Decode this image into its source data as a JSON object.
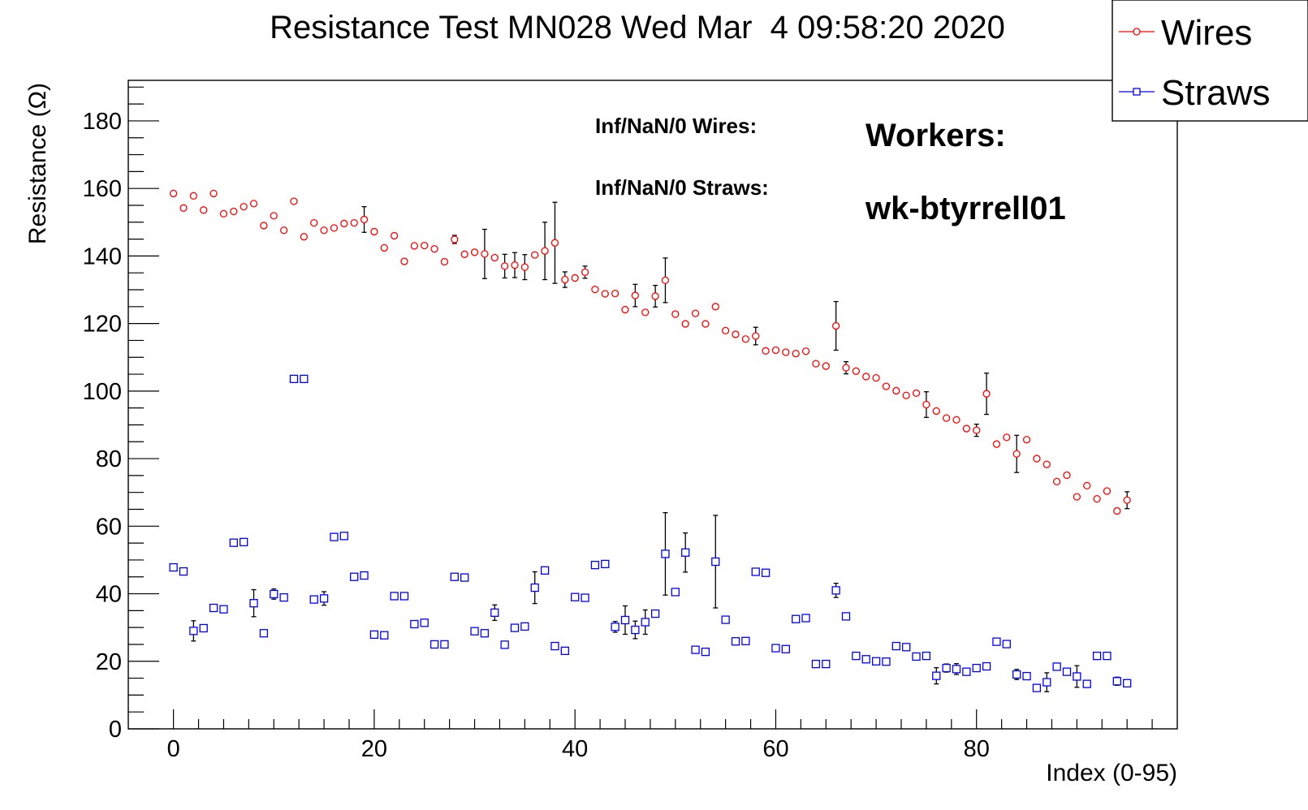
{
  "chart_data": {
    "type": "scatter",
    "title": "Resistance Test MN028 Wed Mar  4 09:58:20 2020",
    "xlabel": "Index (0-95)",
    "ylabel": "Resistance (Ω)",
    "xlim": [
      -4.5,
      100
    ],
    "ylim": [
      0,
      192
    ],
    "x_ticks": [
      0,
      20,
      40,
      60,
      80
    ],
    "x_tick_labels": [
      "0",
      "20",
      "40",
      "60",
      "80"
    ],
    "y_ticks": [
      0,
      20,
      40,
      60,
      80,
      100,
      120,
      140,
      160,
      180
    ],
    "y_tick_labels": [
      "0",
      "20",
      "40",
      "60",
      "80",
      "100",
      "120",
      "140",
      "160",
      "180"
    ],
    "grid": false,
    "legend_position": "top-right",
    "legend": [
      "Wires",
      "Straws"
    ],
    "annotations": {
      "inf_wires": "Inf/NaN/0 Wires:",
      "inf_straws": "Inf/NaN/0 Straws:",
      "workers_label": "Workers:",
      "workers_value": "wk-btyrrell01"
    },
    "series": [
      {
        "name": "Wires",
        "color": "#ff0000",
        "marker": "circle",
        "x": [
          0,
          1,
          2,
          3,
          4,
          5,
          6,
          7,
          8,
          9,
          10,
          11,
          12,
          13,
          14,
          15,
          16,
          17,
          18,
          19,
          20,
          21,
          22,
          23,
          24,
          25,
          26,
          27,
          28,
          29,
          30,
          31,
          32,
          33,
          34,
          35,
          36,
          37,
          38,
          39,
          40,
          41,
          42,
          43,
          44,
          45,
          46,
          47,
          48,
          49,
          50,
          51,
          52,
          53,
          54,
          55,
          56,
          57,
          58,
          59,
          60,
          61,
          62,
          63,
          64,
          65,
          66,
          67,
          68,
          69,
          70,
          71,
          72,
          73,
          74,
          75,
          76,
          77,
          78,
          79,
          80,
          81,
          82,
          83,
          84,
          85,
          86,
          87,
          88,
          89,
          90,
          91,
          92,
          93,
          94,
          95
        ],
        "y": [
          158.5,
          154.2,
          157.8,
          153.6,
          158.5,
          152.5,
          153.2,
          154.6,
          155.5,
          149,
          151.9,
          147.6,
          156.2,
          145.7,
          149.8,
          147.6,
          148.3,
          149.6,
          149.8,
          150.8,
          147.2,
          142.4,
          146,
          138.4,
          143,
          143.1,
          142.1,
          138.3,
          144.9,
          140.5,
          141.1,
          140.6,
          139.5,
          137,
          137.3,
          136.7,
          140.3,
          141.5,
          143.9,
          133,
          133.5,
          135.2,
          130.1,
          128.8,
          128.9,
          124.1,
          128.3,
          123.3,
          128.1,
          132.8,
          122.8,
          119.9,
          123,
          119.9,
          125,
          117.9,
          116.8,
          115.4,
          116.3,
          111.9,
          112.1,
          111.5,
          111.1,
          111.8,
          108.1,
          107.4,
          119.3,
          106.9,
          105.9,
          104.3,
          103.9,
          101.4,
          100.1,
          98.7,
          99.4,
          96,
          94.1,
          92,
          91.5,
          88.9,
          88.4,
          99.2,
          84.3,
          86.3,
          81.4,
          85.6,
          80,
          78.3,
          73.2,
          75.1,
          68.7,
          72,
          68.1,
          70.4,
          64.5,
          67.7
        ],
        "error": [
          0,
          0,
          0,
          0,
          0,
          0,
          0,
          0,
          0,
          0,
          0,
          0,
          0,
          0,
          0,
          0,
          0,
          0,
          0,
          3.8,
          0,
          0,
          0,
          0,
          0,
          0,
          0,
          0,
          1.2,
          0,
          0,
          7.3,
          0,
          3.5,
          3.7,
          3.7,
          0,
          8.5,
          12,
          2.3,
          0,
          1.8,
          0,
          0,
          0,
          0,
          3.3,
          0,
          3.2,
          6.6,
          0,
          0,
          0,
          0,
          0,
          0,
          0,
          0,
          2.6,
          0,
          0,
          0,
          0,
          0,
          0,
          0,
          7.2,
          1.8,
          0,
          0,
          0,
          0,
          0,
          0,
          0,
          3.8,
          0,
          0,
          0,
          0,
          1.8,
          6.1,
          0,
          0,
          5.5,
          0,
          0,
          0,
          0,
          0,
          0,
          0,
          0,
          0,
          0,
          2.5
        ]
      },
      {
        "name": "Straws",
        "color": "#0000ff",
        "marker": "square",
        "x": [
          0,
          1,
          2,
          3,
          4,
          5,
          6,
          7,
          8,
          9,
          10,
          11,
          12,
          13,
          14,
          15,
          16,
          17,
          18,
          19,
          20,
          21,
          22,
          23,
          24,
          25,
          26,
          27,
          28,
          29,
          30,
          31,
          32,
          33,
          34,
          35,
          36,
          37,
          38,
          39,
          40,
          41,
          42,
          43,
          44,
          45,
          46,
          47,
          48,
          49,
          50,
          51,
          52,
          53,
          54,
          55,
          56,
          57,
          58,
          59,
          60,
          61,
          62,
          63,
          64,
          65,
          66,
          67,
          68,
          69,
          70,
          71,
          72,
          73,
          74,
          75,
          76,
          77,
          78,
          79,
          80,
          81,
          82,
          83,
          84,
          85,
          86,
          87,
          88,
          89,
          90,
          91,
          92,
          93,
          94,
          95
        ],
        "y": [
          47.8,
          46.6,
          29,
          29.8,
          35.8,
          35.4,
          55.1,
          55.3,
          37.2,
          28.3,
          39.9,
          38.9,
          103.6,
          103.6,
          38.3,
          38.6,
          56.8,
          57.1,
          45,
          45.4,
          27.9,
          27.7,
          39.3,
          39.3,
          31,
          31.4,
          25,
          25,
          45,
          44.8,
          28.9,
          28.3,
          34.4,
          24.9,
          29.9,
          30.3,
          41.8,
          46.9,
          24.5,
          23.1,
          39,
          38.8,
          48.5,
          48.8,
          30.2,
          32.2,
          29.3,
          31.6,
          34.1,
          51.8,
          40.5,
          52.2,
          23.4,
          22.8,
          49.5,
          32.3,
          25.9,
          26,
          46.5,
          46.2,
          23.9,
          23.6,
          32.5,
          32.8,
          19.2,
          19.2,
          41,
          33.3,
          21.6,
          20.6,
          20,
          19.9,
          24.5,
          24.2,
          21.4,
          21.6,
          15.7,
          18,
          17.7,
          16.9,
          18,
          18.5,
          25.8,
          25.1,
          16.1,
          15.6,
          12.1,
          13.8,
          18.4,
          16.9,
          15.5,
          13.3,
          21.6,
          21.6,
          14.1,
          13.5
        ],
        "error": [
          0,
          0,
          3,
          0,
          0,
          0,
          0,
          0,
          4,
          0,
          1.5,
          0,
          0,
          0,
          0,
          2,
          0,
          0,
          0,
          0,
          0,
          0,
          0,
          0,
          0,
          0,
          0,
          0,
          0,
          0,
          0,
          0,
          2.3,
          0,
          0,
          0,
          4.7,
          0,
          0,
          0,
          0,
          0,
          0,
          0,
          1.6,
          4.2,
          2.6,
          3.6,
          1,
          12.2,
          0,
          5.8,
          0,
          0,
          13.7,
          0,
          1,
          0,
          0,
          0,
          0,
          0,
          0,
          0,
          0,
          0,
          2.1,
          0,
          0,
          0,
          0,
          0,
          0,
          0,
          0,
          0,
          2.4,
          1.2,
          1.6,
          0,
          0,
          0,
          0,
          0,
          1.5,
          0,
          0,
          2.8,
          0,
          0,
          3.2,
          0,
          0,
          0,
          1.2,
          0
        ]
      }
    ]
  }
}
